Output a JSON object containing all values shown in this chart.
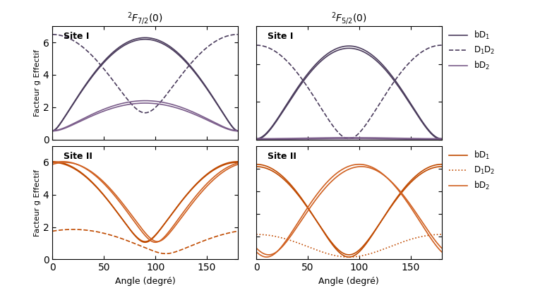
{
  "title_left": "$^2F_{7/2}(0)$",
  "title_right": "$^2F_{5/2}(0)$",
  "ylabel": "Facteur g Effectif",
  "xlabel": "Angle (degré)",
  "purple_dark": "#4A3B5C",
  "purple_light": "#7A5C8A",
  "orange_dark": "#C04A00",
  "orange_light": "#D06020",
  "TL_ylim": [
    0,
    7
  ],
  "TR_ylim": [
    1,
    4
  ],
  "BL_ylim": [
    0,
    7
  ],
  "BR_ylim": [
    1.0,
    3.5
  ],
  "TL_yticks": [
    0,
    2,
    4,
    6
  ],
  "TR_yticks": [
    1,
    2,
    3,
    4
  ],
  "BL_yticks": [
    0,
    2,
    4,
    6
  ],
  "BR_yticks": [
    1.0,
    1.5,
    2.0,
    2.5,
    3.0
  ],
  "xticks": [
    0,
    50,
    100,
    150
  ]
}
